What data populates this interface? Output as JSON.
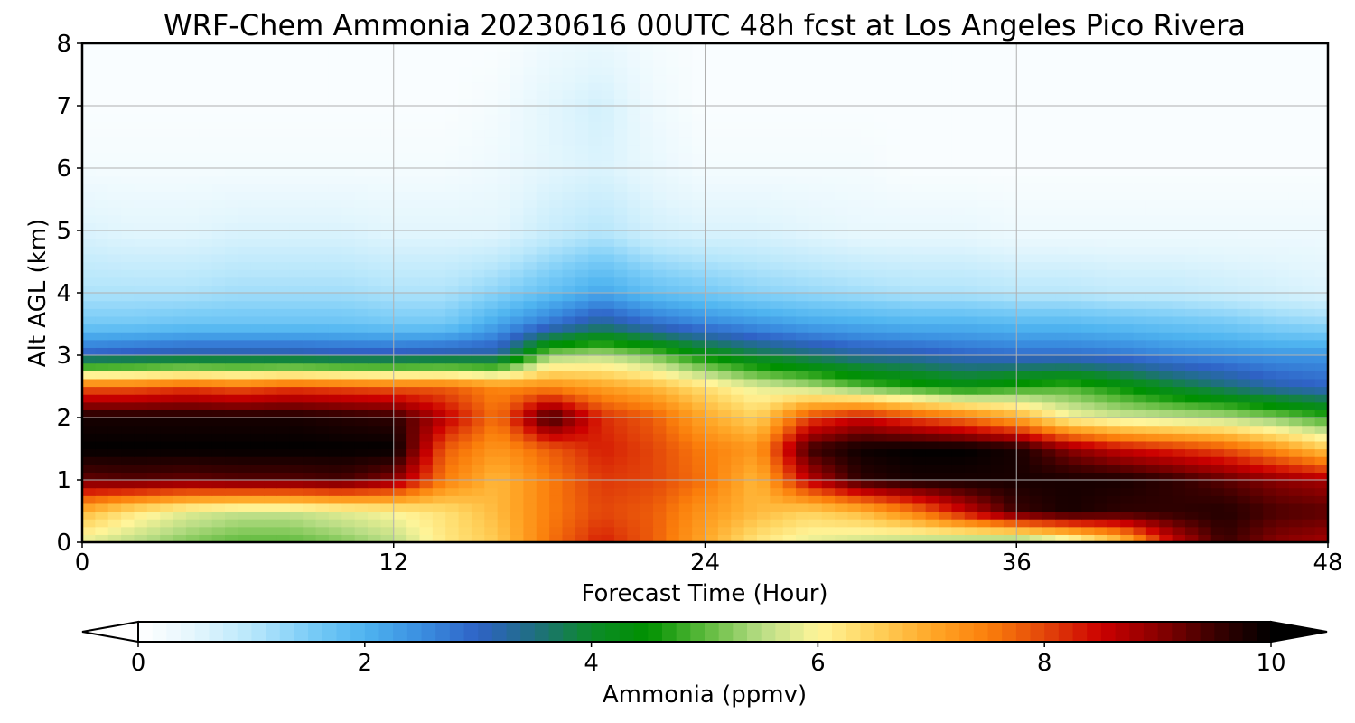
{
  "chart_data": {
    "type": "heatmap",
    "title": "WRF-Chem Ammonia  20230616 00UTC 48h fcst at Los Angeles Pico Rivera",
    "xlabel": "Forecast Time (Hour)",
    "ylabel": "Alt AGL (km)",
    "xlim": [
      0,
      48
    ],
    "ylim": [
      0,
      8
    ],
    "x_ticks": [
      "0",
      "12",
      "24",
      "36",
      "48"
    ],
    "y_ticks": [
      "0",
      "1",
      "2",
      "3",
      "4",
      "5",
      "6",
      "7",
      "8"
    ],
    "grid": true,
    "colorbar": {
      "label": "Ammonia  (ppmv)",
      "range": [
        0,
        10
      ],
      "ticks": [
        "0",
        "2",
        "4",
        "6",
        "8",
        "10"
      ],
      "extend": "both",
      "colors": [
        "#ffffff",
        "#e3f6fd",
        "#b8e7fb",
        "#7ccdf7",
        "#4fb4f0",
        "#3a8ee0",
        "#2f62c6",
        "#1f6f80",
        "#0d8a2a",
        "#009100",
        "#5dba3c",
        "#b8dd85",
        "#fff59a",
        "#ffd25c",
        "#ffa828",
        "#fb7f0b",
        "#e3460a",
        "#cc0000",
        "#8a0000",
        "#3a0000",
        "#000000"
      ]
    },
    "x": [
      0,
      2,
      4,
      6,
      8,
      10,
      12,
      14,
      16,
      18,
      20,
      22,
      24,
      26,
      28,
      30,
      32,
      34,
      36,
      38,
      40,
      42,
      44,
      46,
      48
    ],
    "y": [
      0,
      0.5,
      1,
      1.5,
      2,
      2.5,
      3,
      3.5,
      4,
      5,
      6,
      7,
      8
    ],
    "z": [
      [
        5.8,
        5.5,
        5.2,
        5.0,
        5.0,
        5.2,
        5.5,
        6.2,
        6.6,
        7.6,
        8.3,
        7.8,
        7.0,
        6.2,
        5.8,
        5.6,
        5.4,
        5.2,
        5.0,
        5.5,
        6.5,
        8.5,
        9.5,
        9.0,
        8.8
      ],
      [
        6.8,
        6.2,
        5.8,
        5.6,
        5.6,
        5.8,
        6.0,
        6.3,
        6.8,
        7.5,
        8.0,
        7.8,
        7.2,
        6.8,
        6.5,
        6.8,
        7.5,
        8.5,
        9.5,
        9.8,
        9.6,
        9.6,
        9.7,
        9.4,
        9.3
      ],
      [
        9.2,
        9.3,
        9.2,
        9.3,
        9.3,
        9.4,
        9.0,
        7.5,
        6.8,
        7.5,
        8.1,
        8.0,
        7.6,
        6.8,
        8.6,
        9.6,
        9.8,
        9.8,
        9.8,
        9.8,
        9.8,
        9.6,
        9.3,
        9.0,
        8.8
      ],
      [
        10.0,
        10.0,
        10.0,
        10.0,
        10.0,
        10.0,
        10.0,
        7.8,
        7.2,
        7.8,
        8.3,
        8.0,
        7.5,
        7.2,
        9.5,
        9.9,
        10.0,
        10.0,
        9.8,
        9.0,
        8.5,
        8.2,
        7.9,
        7.3,
        6.6
      ],
      [
        9.8,
        9.8,
        9.8,
        9.8,
        9.8,
        9.7,
        9.6,
        8.6,
        7.6,
        9.6,
        8.2,
        7.8,
        7.0,
        6.5,
        8.0,
        8.5,
        8.0,
        7.6,
        7.0,
        6.0,
        5.7,
        5.6,
        5.5,
        5.2,
        4.8
      ],
      [
        7.8,
        7.8,
        8.0,
        7.8,
        8.0,
        7.9,
        7.8,
        7.8,
        7.4,
        7.4,
        7.1,
        6.8,
        6.3,
        5.8,
        5.5,
        5.0,
        4.7,
        4.4,
        4.7,
        4.9,
        4.5,
        4.0,
        3.6,
        3.2,
        3.0
      ],
      [
        3.1,
        3.2,
        3.3,
        3.3,
        3.3,
        3.2,
        3.2,
        3.3,
        3.3,
        5.3,
        5.5,
        5.1,
        4.4,
        3.9,
        3.6,
        3.3,
        3.2,
        3.0,
        2.9,
        2.9,
        2.8,
        2.6,
        2.5,
        2.4,
        2.4
      ],
      [
        1.6,
        1.6,
        1.7,
        1.7,
        1.7,
        1.7,
        1.6,
        1.6,
        2.2,
        2.8,
        3.4,
        2.9,
        2.6,
        2.4,
        2.2,
        2.1,
        2.0,
        2.0,
        1.9,
        1.9,
        1.8,
        1.7,
        1.6,
        1.4,
        1.3
      ],
      [
        1.1,
        1.1,
        1.1,
        1.2,
        1.2,
        1.2,
        1.1,
        1.1,
        1.4,
        1.8,
        2.2,
        1.8,
        1.6,
        1.4,
        1.3,
        1.2,
        1.1,
        1.1,
        1.0,
        1.0,
        0.9,
        0.9,
        0.8,
        0.7,
        0.6
      ],
      [
        0.6,
        0.5,
        0.5,
        0.6,
        0.6,
        0.6,
        0.5,
        0.5,
        0.5,
        0.8,
        1.0,
        0.7,
        0.6,
        0.6,
        0.5,
        0.4,
        0.4,
        0.4,
        0.3,
        0.3,
        0.3,
        0.3,
        0.3,
        0.3,
        0.3
      ],
      [
        0.2,
        0.2,
        0.2,
        0.2,
        0.2,
        0.2,
        0.2,
        0.2,
        0.3,
        0.5,
        0.6,
        0.4,
        0.2,
        0.2,
        0.2,
        0.2,
        0.1,
        0.1,
        0.1,
        0.1,
        0.1,
        0.1,
        0.1,
        0.1,
        0.1
      ],
      [
        0.1,
        0.1,
        0.1,
        0.1,
        0.1,
        0.1,
        0.1,
        0.1,
        0.2,
        0.5,
        0.7,
        0.3,
        0.1,
        0.1,
        0.1,
        0.1,
        0.1,
        0.1,
        0.1,
        0.1,
        0.1,
        0.1,
        0.1,
        0.1,
        0.1
      ],
      [
        0.1,
        0.1,
        0.1,
        0.1,
        0.1,
        0.1,
        0.1,
        0.1,
        0.1,
        0.3,
        0.4,
        0.2,
        0.1,
        0.1,
        0.1,
        0.1,
        0.1,
        0.1,
        0.1,
        0.1,
        0.1,
        0.1,
        0.1,
        0.1,
        0.1
      ]
    ]
  }
}
